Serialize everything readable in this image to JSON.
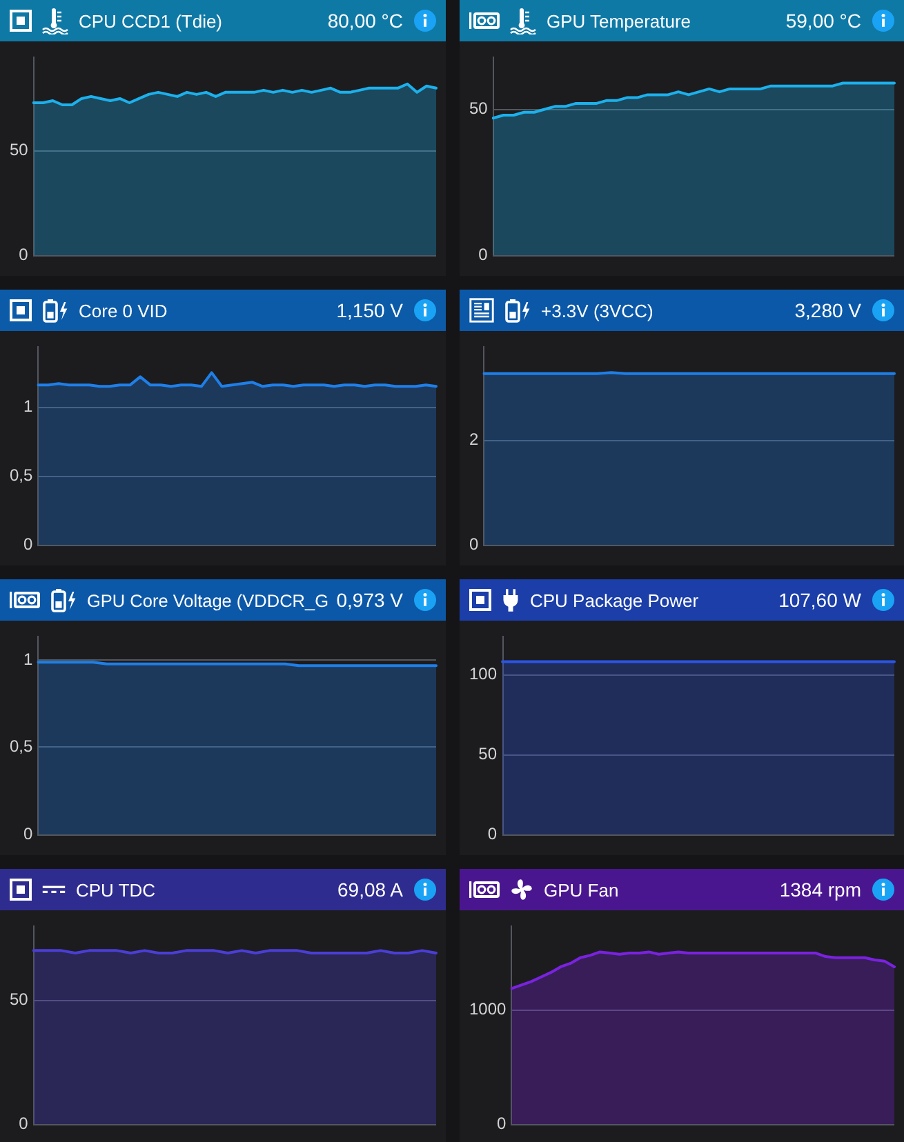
{
  "chart_data": [
    {
      "type": "area",
      "title": "CPU CCD1 (Tdie)",
      "annotations": [
        "80,00 °C"
      ],
      "categories": [
        null,
        null,
        null,
        null,
        null,
        null,
        null,
        null,
        null,
        null,
        null,
        null,
        null,
        null,
        null,
        null,
        null,
        null,
        null,
        null,
        null,
        null,
        null,
        null,
        null,
        null,
        null,
        null,
        null,
        null,
        null,
        null,
        null,
        null,
        null,
        null,
        null,
        null,
        null,
        null,
        null,
        null,
        null
      ],
      "values": [
        73,
        73,
        74,
        72,
        72,
        75,
        76,
        75,
        74,
        75,
        73,
        75,
        77,
        78,
        77,
        76,
        78,
        77,
        78,
        76,
        78,
        78,
        78,
        78,
        79,
        78,
        79,
        78,
        79,
        78,
        79,
        80,
        78,
        78,
        79,
        80,
        80,
        80,
        80,
        82,
        78,
        81,
        80
      ],
      "color": "#1cb0ec",
      "ylim": [
        0,
        95
      ],
      "yticks": [
        0,
        50
      ],
      "grid": "y",
      "marker": "none"
    },
    {
      "type": "area",
      "title": "GPU Temperature",
      "annotations": [
        "59,00 °C"
      ],
      "categories": [
        null,
        null,
        null,
        null,
        null,
        null,
        null,
        null,
        null,
        null,
        null,
        null,
        null,
        null,
        null,
        null,
        null,
        null,
        null,
        null,
        null,
        null,
        null,
        null,
        null,
        null,
        null,
        null,
        null,
        null,
        null,
        null,
        null,
        null,
        null,
        null,
        null,
        null,
        null,
        null
      ],
      "values": [
        47,
        48,
        48,
        49,
        49,
        50,
        51,
        51,
        52,
        52,
        52,
        53,
        53,
        54,
        54,
        55,
        55,
        55,
        56,
        55,
        56,
        57,
        56,
        57,
        57,
        57,
        57,
        58,
        58,
        58,
        58,
        58,
        58,
        58,
        59,
        59,
        59,
        59,
        59,
        59
      ],
      "color": "#1cb0ec",
      "ylim": [
        0,
        68
      ],
      "yticks": [
        0,
        50
      ],
      "grid": "y",
      "marker": "none"
    },
    {
      "type": "area",
      "title": "Core 0 VID",
      "annotations": [
        "1,150 V"
      ],
      "categories": [
        null,
        null,
        null,
        null,
        null,
        null,
        null,
        null,
        null,
        null,
        null,
        null,
        null,
        null,
        null,
        null,
        null,
        null,
        null,
        null,
        null,
        null,
        null,
        null,
        null,
        null,
        null,
        null,
        null,
        null,
        null,
        null,
        null,
        null,
        null,
        null,
        null,
        null,
        null,
        null
      ],
      "values": [
        1.16,
        1.16,
        1.17,
        1.16,
        1.16,
        1.16,
        1.15,
        1.15,
        1.16,
        1.16,
        1.22,
        1.16,
        1.16,
        1.15,
        1.16,
        1.16,
        1.15,
        1.25,
        1.15,
        1.16,
        1.17,
        1.18,
        1.15,
        1.16,
        1.16,
        1.15,
        1.16,
        1.16,
        1.16,
        1.15,
        1.16,
        1.16,
        1.15,
        1.16,
        1.16,
        1.15,
        1.15,
        1.15,
        1.16,
        1.15
      ],
      "color": "#1f7fe8",
      "ylim": [
        0,
        1.44
      ],
      "yticks": [
        0,
        {
          "value": 0.5,
          "label": "0,5"
        },
        1
      ],
      "grid": "y",
      "marker": "none"
    },
    {
      "type": "area",
      "title": "+3.3V (3VCC)",
      "annotations": [
        "3,280 V"
      ],
      "categories": [
        null,
        null,
        null,
        null,
        null,
        null,
        null,
        null,
        null,
        null,
        null,
        null,
        null,
        null,
        null,
        null,
        null,
        null,
        null,
        null,
        null,
        null,
        null,
        null,
        null,
        null,
        null,
        null,
        null,
        null
      ],
      "values": [
        3.28,
        3.28,
        3.28,
        3.28,
        3.28,
        3.28,
        3.28,
        3.28,
        3.28,
        3.3,
        3.28,
        3.28,
        3.28,
        3.28,
        3.28,
        3.28,
        3.28,
        3.28,
        3.28,
        3.28,
        3.28,
        3.28,
        3.28,
        3.28,
        3.28,
        3.28,
        3.28,
        3.28,
        3.28,
        3.28
      ],
      "color": "#1f7fe8",
      "ylim": [
        0,
        3.8
      ],
      "yticks": [
        0,
        2
      ],
      "grid": "y",
      "marker": "none"
    },
    {
      "type": "area",
      "title": "GPU Core Voltage (VDDCR_G",
      "annotations": [
        "0,973 V"
      ],
      "categories": [
        null,
        null,
        null,
        null,
        null,
        null,
        null,
        null,
        null,
        null,
        null,
        null,
        null,
        null,
        null,
        null,
        null,
        null,
        null,
        null,
        null,
        null,
        null,
        null,
        null,
        null,
        null,
        null,
        null,
        null
      ],
      "values": [
        0.99,
        0.99,
        0.99,
        0.99,
        0.99,
        0.98,
        0.98,
        0.98,
        0.98,
        0.98,
        0.98,
        0.98,
        0.98,
        0.98,
        0.98,
        0.98,
        0.98,
        0.98,
        0.98,
        0.97,
        0.97,
        0.97,
        0.97,
        0.97,
        0.97,
        0.97,
        0.97,
        0.97,
        0.97,
        0.97
      ],
      "color": "#1f7fe8",
      "ylim": [
        0,
        1.14
      ],
      "yticks": [
        0,
        {
          "value": 0.5,
          "label": "0,5"
        },
        1
      ],
      "grid": "y",
      "marker": "none"
    },
    {
      "type": "area",
      "title": "CPU Package Power",
      "annotations": [
        "107,60 W"
      ],
      "categories": [
        null,
        null,
        null,
        null,
        null,
        null,
        null,
        null,
        null,
        null,
        null,
        null,
        null,
        null,
        null,
        null,
        null,
        null,
        null,
        null,
        null,
        null,
        null,
        null,
        null,
        null,
        null,
        null,
        null,
        null
      ],
      "values": [
        108,
        108,
        108,
        108,
        108,
        108,
        108,
        108,
        108,
        108,
        108,
        108,
        108,
        108,
        108,
        108,
        108,
        108,
        108,
        108,
        108,
        108,
        108,
        108,
        108,
        108,
        108,
        108,
        108,
        108
      ],
      "color": "#2a56e6",
      "ylim": [
        0,
        124
      ],
      "yticks": [
        0,
        50,
        100
      ],
      "grid": "y",
      "marker": "none"
    },
    {
      "type": "area",
      "title": "CPU TDC",
      "annotations": [
        "69,08 A"
      ],
      "categories": [
        null,
        null,
        null,
        null,
        null,
        null,
        null,
        null,
        null,
        null,
        null,
        null,
        null,
        null,
        null,
        null,
        null,
        null,
        null,
        null,
        null,
        null,
        null,
        null,
        null,
        null,
        null,
        null,
        null,
        null
      ],
      "values": [
        70,
        70,
        70,
        69,
        70,
        70,
        70,
        69,
        70,
        69,
        69,
        70,
        70,
        70,
        69,
        70,
        69,
        70,
        70,
        70,
        69,
        69,
        69,
        69,
        69,
        70,
        69,
        69,
        70,
        69
      ],
      "color": "#4b3ed6",
      "ylim": [
        0,
        80
      ],
      "yticks": [
        0,
        50
      ],
      "grid": "y",
      "marker": "none"
    },
    {
      "type": "area",
      "title": "GPU Fan",
      "annotations": [
        "1384 rpm"
      ],
      "categories": [
        null,
        null,
        null,
        null,
        null,
        null,
        null,
        null,
        null,
        null,
        null,
        null,
        null,
        null,
        null,
        null,
        null,
        null,
        null,
        null,
        null,
        null,
        null,
        null,
        null,
        null,
        null,
        null,
        null,
        null,
        null,
        null,
        null,
        null,
        null,
        null,
        null,
        null,
        null,
        null
      ],
      "values": [
        1190,
        1220,
        1250,
        1290,
        1330,
        1380,
        1410,
        1460,
        1480,
        1510,
        1500,
        1490,
        1500,
        1500,
        1510,
        1490,
        1500,
        1510,
        1500,
        1500,
        1500,
        1500,
        1500,
        1500,
        1500,
        1500,
        1500,
        1500,
        1500,
        1500,
        1500,
        1500,
        1470,
        1460,
        1460,
        1460,
        1460,
        1440,
        1430,
        1380
      ],
      "color": "#7a22e0",
      "ylim": [
        0,
        1740
      ],
      "yticks": [
        0,
        1000
      ],
      "grid": "y",
      "marker": "none"
    }
  ]
}
